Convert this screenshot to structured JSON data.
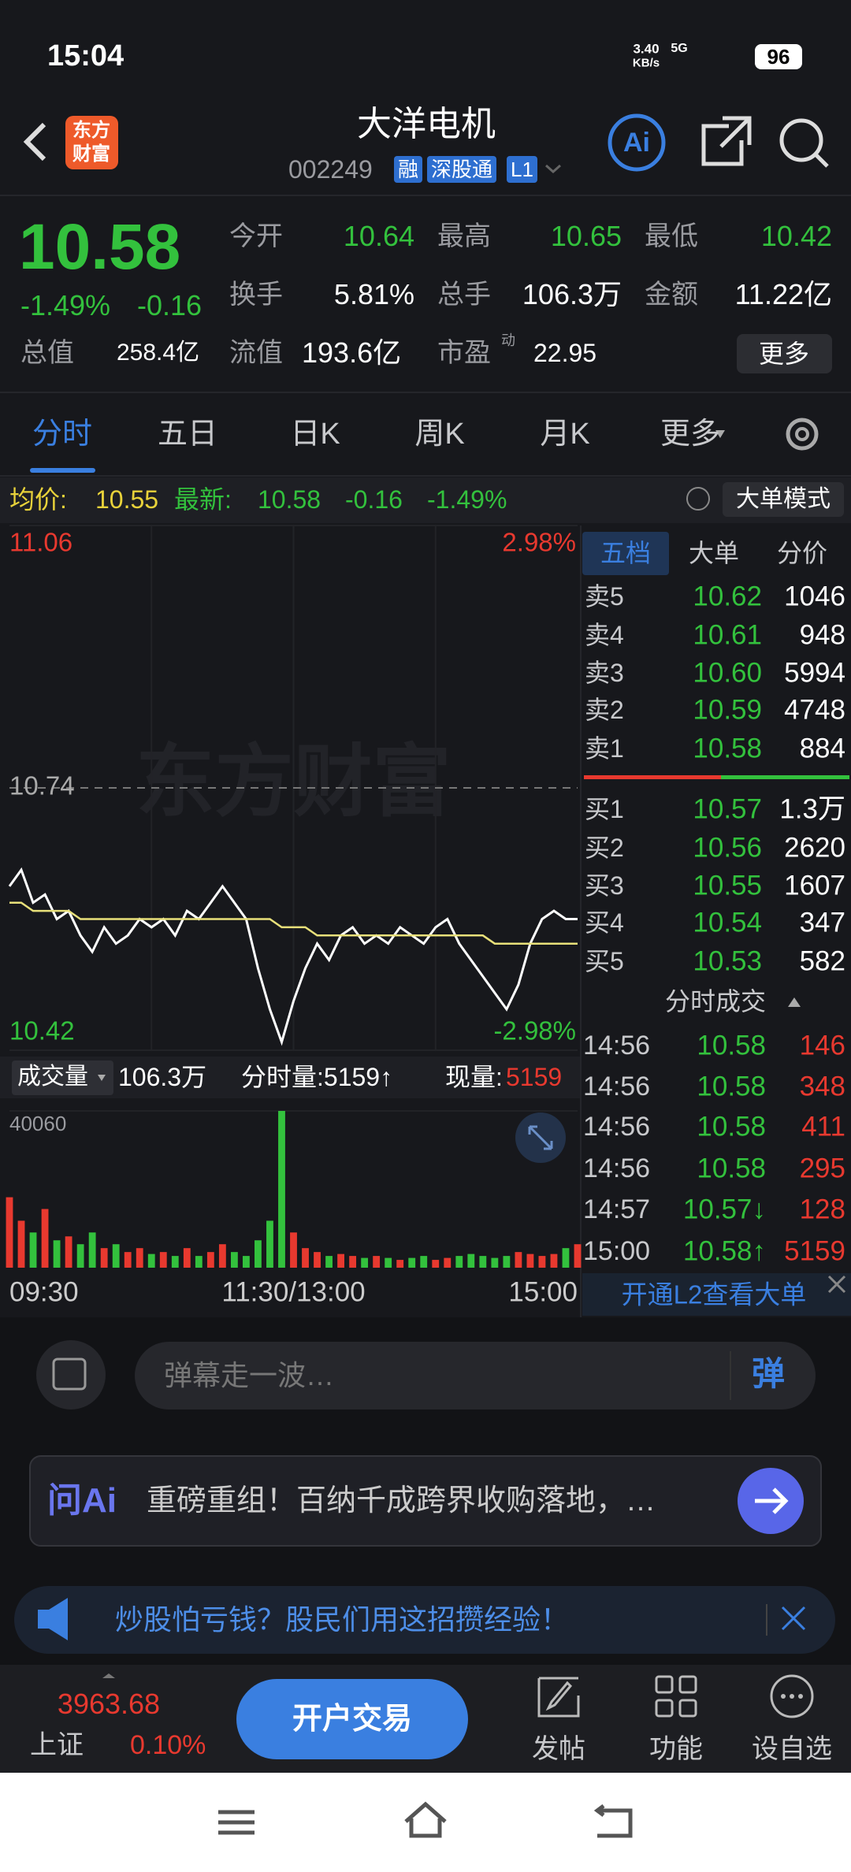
{
  "status_bar": {
    "time": "15:04",
    "speed": "3.40",
    "speed_unit": "KB/s",
    "network": "5G",
    "battery": "96"
  },
  "header": {
    "logo": [
      "东方",
      "财富"
    ],
    "title": "大洋电机",
    "code": "002249",
    "badges": [
      "融",
      "深股通",
      "L1"
    ],
    "ai": "Ai"
  },
  "quote": {
    "price": "10.58",
    "change_pct": "-1.49%",
    "change": "-0.16",
    "stats": [
      {
        "label": "今开",
        "value": "10.64",
        "color": "#33c13d"
      },
      {
        "label": "最高",
        "value": "10.65",
        "color": "#33c13d"
      },
      {
        "label": "最低",
        "value": "10.42",
        "color": "#33c13d"
      },
      {
        "label": "换手",
        "value": "5.81%",
        "color": "#ffffff"
      },
      {
        "label": "总手",
        "value": "106.3万",
        "color": "#ffffff"
      },
      {
        "label": "金额",
        "value": "11.22亿",
        "color": "#ffffff"
      }
    ],
    "total_value": {
      "label": "总值",
      "value": "258.4亿"
    },
    "float_value": {
      "label": "流值",
      "value": "193.6亿"
    },
    "pe": {
      "label": "市盈",
      "mark": "动",
      "value": "22.95"
    },
    "more": "更多"
  },
  "tabs": [
    "分时",
    "五日",
    "日K",
    "周K",
    "月K",
    "更多"
  ],
  "info_bar": {
    "avg_label": "均价:",
    "avg": "10.55",
    "last_label": "最新:",
    "last": "10.58",
    "change": "-0.16",
    "change_pct": "-1.49%",
    "button": "大单模式"
  },
  "chart_data": [
    {
      "type": "line",
      "watermark": "东方财富",
      "x": [
        0,
        5,
        10,
        15,
        20,
        25,
        30,
        35,
        40,
        45,
        50,
        55,
        60,
        65,
        70,
        75,
        80,
        85,
        90,
        95,
        100,
        105,
        110,
        115,
        120,
        125,
        130,
        135,
        140,
        145,
        150,
        155,
        160,
        165,
        170,
        175,
        180,
        185,
        190,
        195,
        200,
        205,
        210,
        215,
        220,
        225,
        230,
        235,
        240
      ],
      "xlim": [
        0,
        240
      ],
      "ylim": [
        10.42,
        11.06
      ],
      "yticks": [
        10.42,
        10.74,
        11.06
      ],
      "y2lim": [
        -2.98,
        2.98
      ],
      "y2ticks": [
        {
          "value": 2.98,
          "label": "2.98%"
        },
        {
          "value": -2.98,
          "label": "-2.98%"
        }
      ],
      "grid": true,
      "series": [
        {
          "name": "价格",
          "color": "#ffffff",
          "values": [
            10.62,
            10.64,
            10.6,
            10.61,
            10.58,
            10.59,
            10.56,
            10.54,
            10.57,
            10.55,
            10.56,
            10.58,
            10.57,
            10.58,
            10.56,
            10.59,
            10.58,
            10.6,
            10.62,
            10.6,
            10.58,
            10.52,
            10.47,
            10.43,
            10.48,
            10.52,
            10.55,
            10.53,
            10.56,
            10.57,
            10.55,
            10.56,
            10.55,
            10.57,
            10.56,
            10.55,
            10.57,
            10.58,
            10.55,
            10.53,
            10.51,
            10.49,
            10.47,
            10.5,
            10.55,
            10.58,
            10.59,
            10.58,
            10.58
          ]
        },
        {
          "name": "均价",
          "color": "#e8e07a",
          "values": [
            10.6,
            10.6,
            10.59,
            10.59,
            10.59,
            10.59,
            10.58,
            10.58,
            10.58,
            10.58,
            10.58,
            10.58,
            10.58,
            10.58,
            10.58,
            10.58,
            10.58,
            10.58,
            10.58,
            10.58,
            10.58,
            10.58,
            10.58,
            10.57,
            10.57,
            10.57,
            10.56,
            10.56,
            10.56,
            10.56,
            10.56,
            10.56,
            10.56,
            10.56,
            10.56,
            10.56,
            10.56,
            10.56,
            10.56,
            10.56,
            10.56,
            10.55,
            10.55,
            10.55,
            10.55,
            10.55,
            10.55,
            10.55,
            10.55
          ]
        }
      ]
    },
    {
      "type": "bar",
      "x": [
        0,
        5,
        10,
        15,
        20,
        25,
        30,
        35,
        40,
        45,
        50,
        55,
        60,
        65,
        70,
        75,
        80,
        85,
        90,
        95,
        100,
        105,
        110,
        115,
        120,
        125,
        130,
        135,
        140,
        145,
        150,
        155,
        160,
        165,
        170,
        175,
        180,
        185,
        190,
        195,
        200,
        205,
        210,
        215,
        220,
        225,
        230,
        235,
        240
      ],
      "xlim": [
        0,
        240
      ],
      "xticks": [
        {
          "value": 0,
          "label": "09:30"
        },
        {
          "value": 120,
          "label": "11:30/13:00"
        },
        {
          "value": 240,
          "label": "15:00"
        }
      ],
      "ylim": [
        0,
        40060
      ],
      "yticks": [
        40060
      ],
      "values": [
        18000,
        12000,
        9000,
        15000,
        7000,
        8000,
        6000,
        9000,
        5000,
        6000,
        4000,
        5000,
        3500,
        4000,
        3000,
        5000,
        3000,
        4000,
        6000,
        4000,
        3000,
        7000,
        12000,
        40060,
        9000,
        5000,
        4000,
        3000,
        3500,
        3000,
        2500,
        3000,
        2500,
        2000,
        2500,
        3000,
        2000,
        2500,
        3000,
        3500,
        3000,
        2500,
        3000,
        4000,
        3500,
        3000,
        3500,
        5000,
        6000
      ],
      "colors": [
        "#e8392f",
        "#e8392f",
        "#33c13d",
        "#e8392f",
        "#33c13d",
        "#e8392f",
        "#33c13d",
        "#33c13d",
        "#e8392f",
        "#33c13d",
        "#e8392f",
        "#e8392f",
        "#33c13d",
        "#e8392f",
        "#33c13d",
        "#e8392f",
        "#33c13d",
        "#e8392f",
        "#e8392f",
        "#33c13d",
        "#33c13d",
        "#33c13d",
        "#33c13d",
        "#33c13d",
        "#e8392f",
        "#e8392f",
        "#e8392f",
        "#33c13d",
        "#e8392f",
        "#e8392f",
        "#33c13d",
        "#e8392f",
        "#33c13d",
        "#e8392f",
        "#33c13d",
        "#33c13d",
        "#e8392f",
        "#e8392f",
        "#33c13d",
        "#33c13d",
        "#33c13d",
        "#33c13d",
        "#33c13d",
        "#e8392f",
        "#e8392f",
        "#e8392f",
        "#e8392f",
        "#33c13d",
        "#e8392f"
      ]
    }
  ],
  "volume_bar": {
    "label": "成交量",
    "total": "106.3万",
    "minute": "分时量:5159↑",
    "current_label": "现量:",
    "current": "5159"
  },
  "order_book": {
    "tabs": [
      "五档",
      "大单",
      "分价"
    ],
    "asks": [
      [
        "卖5",
        "10.62",
        "1046"
      ],
      [
        "卖4",
        "10.61",
        "948"
      ],
      [
        "卖3",
        "10.60",
        "5994"
      ],
      [
        "卖2",
        "10.59",
        "4748"
      ],
      [
        "卖1",
        "10.58",
        "884"
      ]
    ],
    "bids": [
      [
        "买1",
        "10.57",
        "1.3万"
      ],
      [
        "买2",
        "10.56",
        "2620"
      ],
      [
        "买3",
        "10.55",
        "1607"
      ],
      [
        "买4",
        "10.54",
        "347"
      ],
      [
        "买5",
        "10.53",
        "582"
      ]
    ],
    "trades_title": "分时成交",
    "trades": [
      [
        "14:56",
        "10.58",
        "146"
      ],
      [
        "14:56",
        "10.58",
        "348"
      ],
      [
        "14:56",
        "10.58",
        "411"
      ],
      [
        "14:56",
        "10.58",
        "295"
      ],
      [
        "14:57",
        "10.57↓",
        "128"
      ],
      [
        "15:00",
        "10.58↑",
        "5159"
      ]
    ],
    "banner": "开通L2查看大单"
  },
  "comment": {
    "placeholder": "弹幕走一波…",
    "button": "弹"
  },
  "ai_bar": {
    "logo": "问Ai",
    "text": "重磅重组！百纳千成跨界收购落地，…"
  },
  "notice": {
    "text": "炒股怕亏钱？股民们用这招攒经验！"
  },
  "bottom_bar": {
    "index_value": "3963.68",
    "index_name": "上证",
    "index_pct": "0.10%",
    "button": "开户交易",
    "nav": [
      "发帖",
      "功能",
      "设自选"
    ]
  }
}
